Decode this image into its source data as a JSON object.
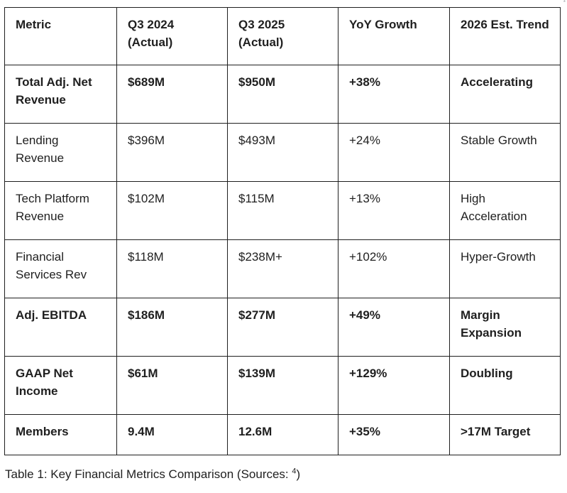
{
  "table": {
    "headers": [
      "Metric",
      "Q3 2024 (Actual)",
      "Q3 2025 (Actual)",
      "YoY Growth",
      "2026 Est. Trend"
    ],
    "rows": [
      {
        "cells": [
          "Total Adj. Net Revenue",
          "$689M",
          "$950M",
          "+38%",
          "Accelerating"
        ],
        "bold": true
      },
      {
        "cells": [
          "Lending Revenue",
          "$396M",
          "$493M",
          "+24%",
          "Stable Growth"
        ],
        "bold": false
      },
      {
        "cells": [
          "Tech Platform Revenue",
          "$102M",
          "$115M",
          "+13%",
          "High Acceleration"
        ],
        "bold": false
      },
      {
        "cells": [
          "Financial Services Rev",
          "$118M",
          "$238M+",
          "+102%",
          "Hyper-Growth"
        ],
        "bold": false
      },
      {
        "cells": [
          "Adj. EBITDA",
          "$186M",
          "$277M",
          "+49%",
          "Margin Expansion"
        ],
        "bold": true
      },
      {
        "cells": [
          "GAAP Net Income",
          "$61M",
          "$139M",
          "+129%",
          "Doubling"
        ],
        "bold": true
      },
      {
        "cells": [
          "Members",
          "9.4M",
          "12.6M",
          "+35%",
          ">17M Target"
        ],
        "bold": true
      }
    ]
  },
  "caption": {
    "text": "Table 1: Key Financial Metrics Comparison (Sources: ",
    "source_ref": "4",
    "closing": ")"
  },
  "corner_mark": "*"
}
